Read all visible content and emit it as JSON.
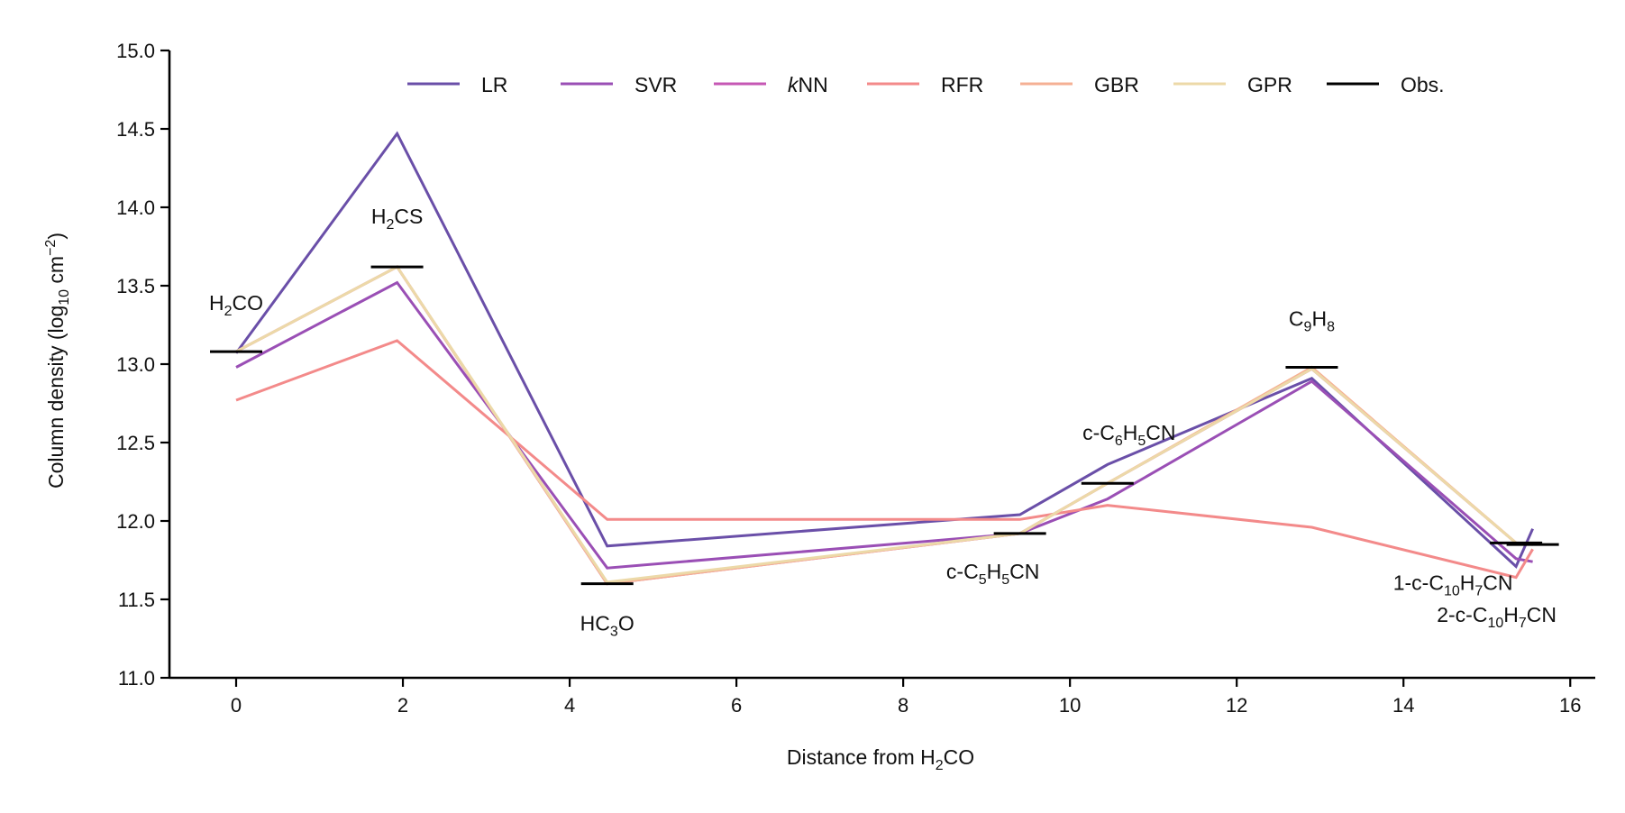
{
  "chart_data": {
    "type": "line",
    "xlabel": "Distance from H2CO",
    "ylabel": "Column density (log10 cm−2)",
    "xlim": [
      -0.8,
      16.3
    ],
    "ylim": [
      11.0,
      15.0
    ],
    "x_ticks": [
      0,
      2,
      4,
      6,
      8,
      10,
      12,
      14,
      16
    ],
    "y_ticks": [
      11.0,
      11.5,
      12.0,
      12.5,
      13.0,
      13.5,
      14.0,
      14.5,
      15.0
    ],
    "x": [
      0.0,
      1.93,
      4.45,
      9.4,
      10.45,
      12.9,
      15.35,
      15.55
    ],
    "molecules": [
      "H2CO",
      "H2CS",
      "HC3O",
      "c-C5H5CN",
      "c-C6H5CN",
      "C9H8",
      "1-c-C10H7CN",
      "2-c-C10H7CN"
    ],
    "series": [
      {
        "name": "LR",
        "color": "#6a4fa8",
        "values": [
          13.07,
          14.47,
          11.84,
          12.04,
          12.36,
          12.91,
          11.71,
          11.95
        ]
      },
      {
        "name": "SVR",
        "color": "#9a4fb5",
        "values": [
          12.98,
          13.52,
          11.7,
          11.92,
          12.14,
          12.89,
          11.76,
          11.74
        ]
      },
      {
        "name": "kNN",
        "color": "#c658b4",
        "values": [
          13.08,
          13.62,
          11.6,
          11.92,
          12.24,
          12.97,
          11.86,
          11.85
        ]
      },
      {
        "name": "RFR",
        "color": "#f38a8a",
        "values": [
          12.77,
          13.15,
          12.01,
          12.01,
          12.1,
          11.96,
          11.64,
          11.82
        ]
      },
      {
        "name": "GBR",
        "color": "#f5b094",
        "values": [
          13.08,
          13.62,
          11.6,
          11.92,
          12.24,
          12.98,
          11.86,
          11.85
        ]
      },
      {
        "name": "GPR",
        "color": "#ecd9a8",
        "values": [
          13.08,
          13.62,
          11.61,
          11.92,
          12.24,
          12.97,
          11.86,
          11.85
        ]
      }
    ],
    "observed": {
      "name": "Obs.",
      "color": "#000000",
      "values": [
        13.08,
        13.62,
        11.6,
        11.92,
        12.24,
        12.98,
        11.86,
        11.85
      ]
    },
    "legend_position": "top",
    "grid": false
  },
  "labels": {
    "xlabel_prefix": "Distance from H",
    "xlabel_sub": "2",
    "xlabel_suffix": "CO",
    "ylabel_prefix": "Column density (log",
    "ylabel_sub": "10",
    "ylabel_mid": " cm",
    "ylabel_sup": "−2",
    "ylabel_suffix": ")",
    "legend_knn_italic": "k",
    "legend_knn_rest": "NN"
  }
}
